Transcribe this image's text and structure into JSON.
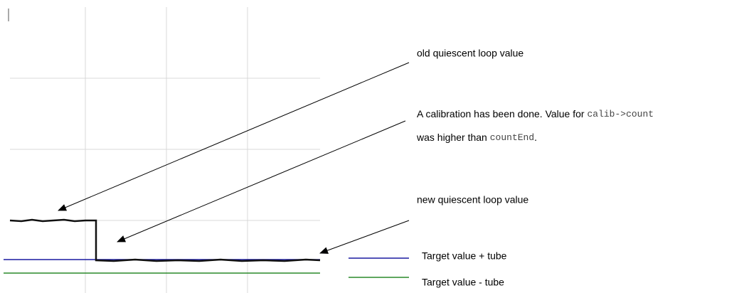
{
  "annotations": {
    "old": "old quiescent loop value",
    "calibration": {
      "line1_text": "A calibration has been done. Value for ",
      "line1_code": "calib->count",
      "line2_text": "was higher than ",
      "line2_code": "countEnd",
      "line2_end": "."
    },
    "new": "new quiescent loop value"
  },
  "legend": [
    "Target value + tube",
    "Target value - tube"
  ]
}
